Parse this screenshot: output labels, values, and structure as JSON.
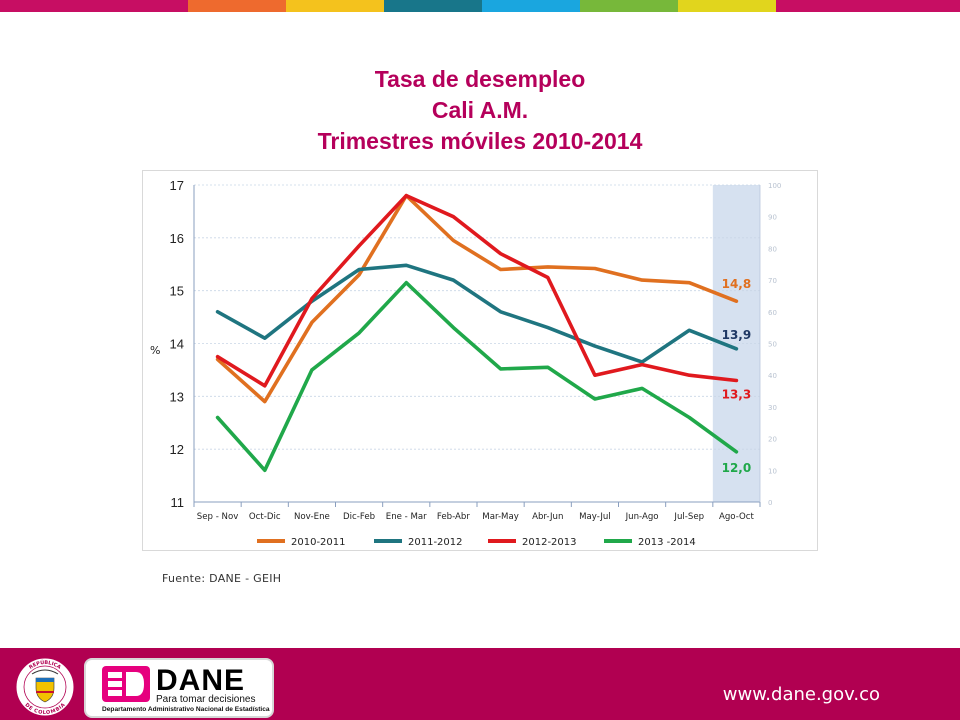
{
  "top_bar_colors": [
    "#c70e63",
    "#ee6a2e",
    "#f4c21d",
    "#18768a",
    "#1aa6df",
    "#77b83a",
    "#e1d51d",
    "#c70e63"
  ],
  "title": {
    "line1": "Tasa de desempleo",
    "line2": "Cali A.M.",
    "line3": "Trimestres móviles 2010-2014"
  },
  "source": "Fuente: DANE - GEIH",
  "footer": {
    "url": "www.dane.gov.co",
    "logo_word": "DANE",
    "logo_tagline": "Para tomar decisiones",
    "logo_subtitle": "Departamento Administrativo Nacional de Estadística",
    "shield_text_top": "REPÚBLICA",
    "shield_text_bottom": "DE COLOMBIA"
  },
  "chart_data": {
    "type": "line",
    "title": "",
    "ylabel": "%",
    "ylim": [
      11,
      17
    ],
    "yticks": [
      11,
      12,
      13,
      14,
      15,
      16,
      17
    ],
    "secondary_yticks": [
      0,
      10,
      20,
      30,
      40,
      50,
      60,
      70,
      80,
      90,
      100
    ],
    "grid": true,
    "legend_position": "bottom",
    "highlighted_category": "Ago-Oct",
    "highlight_color": "#d6e1f0",
    "categories": [
      "Sep - Nov",
      "Oct-Dic",
      "Nov-Ene",
      "Dic-Feb",
      "Ene - Mar",
      "Feb-Abr",
      "Mar-May",
      "Abr-Jun",
      "May-Jul",
      "Jun-Ago",
      "Jul-Sep",
      "Ago-Oct"
    ],
    "series": [
      {
        "name": "2010-2011",
        "color": "#e07020",
        "values": [
          13.7,
          12.9,
          14.4,
          15.3,
          16.8,
          15.95,
          15.4,
          15.45,
          15.42,
          15.2,
          15.15,
          14.8
        ],
        "end_label": "14,8"
      },
      {
        "name": "2011-2012",
        "color": "#1f7580",
        "values": [
          14.6,
          14.1,
          14.8,
          15.4,
          15.48,
          15.2,
          14.6,
          14.3,
          13.95,
          13.65,
          14.25,
          13.9
        ],
        "end_label": "13,9",
        "end_label_color": "#1f3864"
      },
      {
        "name": "2012-2013",
        "color": "#e0191e",
        "values": [
          13.75,
          13.2,
          14.85,
          15.85,
          16.8,
          16.4,
          15.7,
          15.25,
          13.4,
          13.6,
          13.4,
          13.3
        ],
        "end_label": "13,3"
      },
      {
        "name": "2013 -2014",
        "color": "#20a84a",
        "values": [
          12.6,
          11.6,
          13.5,
          14.2,
          15.15,
          14.3,
          13.52,
          13.55,
          12.95,
          13.15,
          12.6,
          11.95
        ],
        "end_label": "12,0"
      }
    ]
  }
}
